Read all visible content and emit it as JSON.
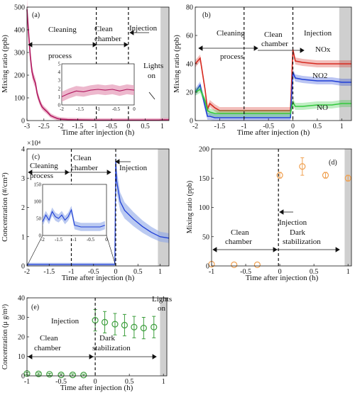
{
  "colors": {
    "gray_band": "#cfcfcf",
    "magenta": "#b0185f",
    "magenta_band": "#e59ab8",
    "red": "#d62a20",
    "green": "#32c83c",
    "blue": "#1f3fd6",
    "blue_band": "#8da7e8",
    "orange": "#f0a050",
    "green_marker": "#3c9e3c"
  },
  "chart_data": [
    {
      "id": "a",
      "type": "line",
      "panel_label": "(a)",
      "xlabel": "Time after injection (h)",
      "ylabel": "Mixing ratio (ppb)",
      "xlim": [
        -3,
        1.2
      ],
      "ylim": [
        0,
        500
      ],
      "xticks": [
        -3,
        -2.5,
        -2,
        -1.5,
        -1,
        -0.5,
        0,
        0.5,
        1
      ],
      "xtick_labels": [
        "-3",
        "-2.5",
        "-2",
        "-1.5",
        "-1",
        "-0.5",
        "0",
        "0.5",
        "1"
      ],
      "yticks": [
        0,
        100,
        200,
        300,
        400,
        500
      ],
      "ytick_labels": [
        "0",
        "100",
        "200",
        "300",
        "400",
        "500"
      ],
      "shaded_from": 0.95,
      "annotations": [
        "Cleaning",
        "process",
        "Clean",
        "chamber",
        "Injection",
        "Lights",
        "on"
      ],
      "dashed_lines": [
        -0.95,
        0
      ],
      "series": [
        {
          "x": [
            -3,
            -2.95,
            -2.9,
            -2.85,
            -2.8,
            -2.75,
            -2.7,
            -2.65,
            -2.6,
            -2.55,
            -2.5,
            -2.45,
            -2.4,
            -2.35,
            -2.3,
            -2.2,
            -2.1,
            -2.0,
            -1.8,
            -1.5,
            -1.0,
            -0.5,
            0,
            0.5,
            0.9,
            1.0,
            1.2
          ],
          "y": [
            490,
            380,
            280,
            215,
            185,
            165,
            120,
            95,
            75,
            60,
            52,
            45,
            38,
            30,
            22,
            15,
            9,
            6,
            4,
            3,
            2,
            2,
            2,
            2,
            2,
            3,
            3
          ]
        }
      ],
      "inset": {
        "xlim": [
          -2,
          0
        ],
        "ylim": [
          0,
          5
        ],
        "xtick_labels": [
          "-2",
          "-1.5",
          "-1",
          "-0.5",
          "0"
        ],
        "ytick_labels": [
          "0",
          "1",
          "2",
          "3",
          "4",
          "5"
        ],
        "x": [
          -2,
          -1.8,
          -1.6,
          -1.4,
          -1.2,
          -1.0,
          -0.8,
          -0.6,
          -0.4,
          -0.2,
          0
        ],
        "y": [
          1.0,
          1.4,
          1.7,
          1.6,
          1.8,
          1.9,
          1.8,
          1.9,
          1.7,
          1.9,
          1.8
        ]
      }
    },
    {
      "id": "b",
      "type": "line",
      "panel_label": "(b)",
      "xlabel": "Time after injection (h)",
      "ylabel": "Mixing ratio (ppb)",
      "xlim": [
        -2,
        1.2
      ],
      "ylim": [
        0,
        80
      ],
      "xticks": [
        -2,
        -1.5,
        -1,
        -0.5,
        0,
        0.5,
        1
      ],
      "xtick_labels": [
        "-2",
        "-1.5",
        "-1",
        "-0.5",
        "0",
        "0.5",
        "1"
      ],
      "yticks": [
        0,
        20,
        40,
        60,
        80
      ],
      "ytick_labels": [
        "0",
        "20",
        "40",
        "60",
        "80"
      ],
      "shaded_from": 0.95,
      "annotations": [
        "Cleaning",
        "process",
        "Clean",
        "chamber",
        "Injection"
      ],
      "dashed_lines": [
        -1,
        0
      ],
      "series": [
        {
          "name": "NOx",
          "color": "red",
          "x": [
            -2,
            -1.9,
            -1.8,
            -1.75,
            -1.7,
            -1.6,
            -1.5,
            -1.2,
            -1.0,
            -0.5,
            -0.05,
            0.0,
            0.05,
            0.2,
            0.5,
            0.8,
            1.0,
            1.2
          ],
          "y": [
            40,
            44,
            22,
            8,
            12,
            9,
            7,
            7,
            7,
            7,
            7,
            50,
            42,
            41,
            40,
            40,
            40,
            40
          ]
        },
        {
          "name": "NO2",
          "color": "blue",
          "x": [
            -2,
            -1.9,
            -1.8,
            -1.75,
            -1.7,
            -1.6,
            -1.5,
            -1.2,
            -1.0,
            -0.5,
            -0.05,
            0.0,
            0.05,
            0.2,
            0.5,
            0.8,
            1.0,
            1.2
          ],
          "y": [
            20,
            25,
            10,
            3,
            3,
            2,
            2,
            2,
            2,
            2,
            2,
            34,
            30,
            29,
            28,
            28,
            27,
            27
          ]
        },
        {
          "name": "NO",
          "color": "green",
          "x": [
            -2,
            -1.9,
            -1.8,
            -1.75,
            -1.7,
            -1.6,
            -1.5,
            -1.2,
            -1.0,
            -0.5,
            -0.05,
            0.0,
            0.05,
            0.2,
            0.5,
            0.8,
            1.0,
            1.2
          ],
          "y": [
            20,
            22,
            14,
            7,
            6,
            5,
            5,
            5,
            5,
            5,
            5,
            13,
            10,
            10,
            11,
            11,
            12,
            12
          ]
        }
      ]
    },
    {
      "id": "c",
      "type": "line",
      "panel_label": "(c)",
      "xlabel": "Time after injection (h)",
      "ylabel": "Concentration (#/cm³)",
      "y_multiplier": "×10⁴",
      "xlim": [
        -2,
        1.2
      ],
      "ylim": [
        0,
        4
      ],
      "xticks": [
        -2,
        -1.5,
        -1,
        -0.5,
        0,
        0.5,
        1
      ],
      "xtick_labels": [
        "-2",
        "-1.5",
        "-1",
        "-0.5",
        "0",
        "0.5",
        "1"
      ],
      "yticks": [
        0,
        1,
        2,
        3,
        4
      ],
      "ytick_labels": [
        "0",
        "1",
        "2",
        "3",
        "4"
      ],
      "shaded_from": 0.95,
      "annotations": [
        "Cleaning",
        "process",
        "Clean",
        "chamber",
        "Injection"
      ],
      "dashed_lines": [
        -1,
        0
      ],
      "series": [
        {
          "x": [
            -2,
            -1.5,
            -1.0,
            -0.5,
            -0.1,
            -0.02,
            0.0,
            0.02,
            0.1,
            0.2,
            0.4,
            0.6,
            0.8,
            1.0,
            1.2
          ],
          "y": [
            0.05,
            0.05,
            0.05,
            0.05,
            0.05,
            0.05,
            3.6,
            2.9,
            2.2,
            1.9,
            1.6,
            1.35,
            1.15,
            1.0,
            0.95
          ]
        }
      ],
      "inset": {
        "xlim": [
          -2,
          0
        ],
        "ylim": [
          0,
          150
        ],
        "xtick_labels": [
          "-2",
          "-1.5",
          "-1",
          "-0.5",
          "0"
        ],
        "ytick_labels": [
          "0",
          "50",
          "100",
          "150"
        ],
        "x": [
          -2,
          -1.9,
          -1.8,
          -1.7,
          -1.6,
          -1.5,
          -1.4,
          -1.3,
          -1.2,
          -1.1,
          -1.0,
          -0.8,
          -0.6,
          -0.4,
          -0.2,
          -0.05
        ],
        "y": [
          40,
          60,
          45,
          70,
          55,
          50,
          60,
          45,
          55,
          75,
          30,
          25,
          25,
          25,
          25,
          30
        ]
      }
    },
    {
      "id": "d",
      "type": "scatter",
      "panel_label": "(d)",
      "xlabel": "Time after injection (h)",
      "ylabel": "Mixing ratio (ppb)",
      "xlim": [
        -1,
        1.05
      ],
      "ylim": [
        0,
        200
      ],
      "xticks": [
        -1,
        -0.5,
        0,
        0.5,
        1
      ],
      "xtick_labels": [
        "-1",
        "-0.5",
        "0",
        "0.5",
        "1"
      ],
      "yticks": [
        0,
        50,
        100,
        150,
        200
      ],
      "ytick_labels": [
        "0",
        "50",
        "100",
        "150",
        "200"
      ],
      "shaded_from": 0.95,
      "annotations": [
        "Injection",
        "Clean",
        "chamber",
        "Dark",
        "stabilization"
      ],
      "dashed_lines": [
        -0.02
      ],
      "points": [
        {
          "x": -1.0,
          "y": 3,
          "err": 0
        },
        {
          "x": -0.67,
          "y": 2,
          "err": 0
        },
        {
          "x": -0.33,
          "y": 2,
          "err": 0
        },
        {
          "x": 0.0,
          "y": 155,
          "err": 5
        },
        {
          "x": 0.33,
          "y": 170,
          "err": 15
        },
        {
          "x": 0.67,
          "y": 155,
          "err": 5
        },
        {
          "x": 1.0,
          "y": 150,
          "err": 5
        }
      ]
    },
    {
      "id": "e",
      "type": "scatter",
      "panel_label": "(e)",
      "xlabel": "Time after injection (h)",
      "ylabel": "Concentration (μ g/m³)",
      "xlim": [
        -1,
        1.05
      ],
      "ylim": [
        0,
        40
      ],
      "xticks": [
        -1,
        -0.5,
        0,
        0.5,
        1
      ],
      "xtick_labels": [
        "-1",
        "-0.5",
        "0",
        "0.5",
        "1"
      ],
      "yticks": [
        0,
        10,
        20,
        30,
        40
      ],
      "ytick_labels": [
        "0",
        "10",
        "20",
        "30",
        "40"
      ],
      "shaded_from": 0.95,
      "annotations": [
        "Lights",
        "on",
        "Injection",
        "Clean",
        "chamber",
        "Dark",
        "stabilization"
      ],
      "dashed_lines": [
        0
      ],
      "points": [
        {
          "x": -1.0,
          "y": 1.2,
          "err": 0.5
        },
        {
          "x": -0.83,
          "y": 1.0,
          "err": 0.5
        },
        {
          "x": -0.67,
          "y": 0.8,
          "err": 0.5
        },
        {
          "x": -0.5,
          "y": 0.5,
          "err": 0.5
        },
        {
          "x": -0.33,
          "y": 0.5,
          "err": 0.5
        },
        {
          "x": -0.17,
          "y": 0.4,
          "err": 0.4
        },
        {
          "x": 0.0,
          "y": 28.5,
          "err": 5.5
        },
        {
          "x": 0.14,
          "y": 27.5,
          "err": 5.5
        },
        {
          "x": 0.29,
          "y": 26.5,
          "err": 5.5
        },
        {
          "x": 0.43,
          "y": 26.0,
          "err": 5.5
        },
        {
          "x": 0.57,
          "y": 25.0,
          "err": 5.5
        },
        {
          "x": 0.71,
          "y": 24.5,
          "err": 5.5
        },
        {
          "x": 0.86,
          "y": 25.0,
          "err": 5.5
        }
      ]
    }
  ]
}
